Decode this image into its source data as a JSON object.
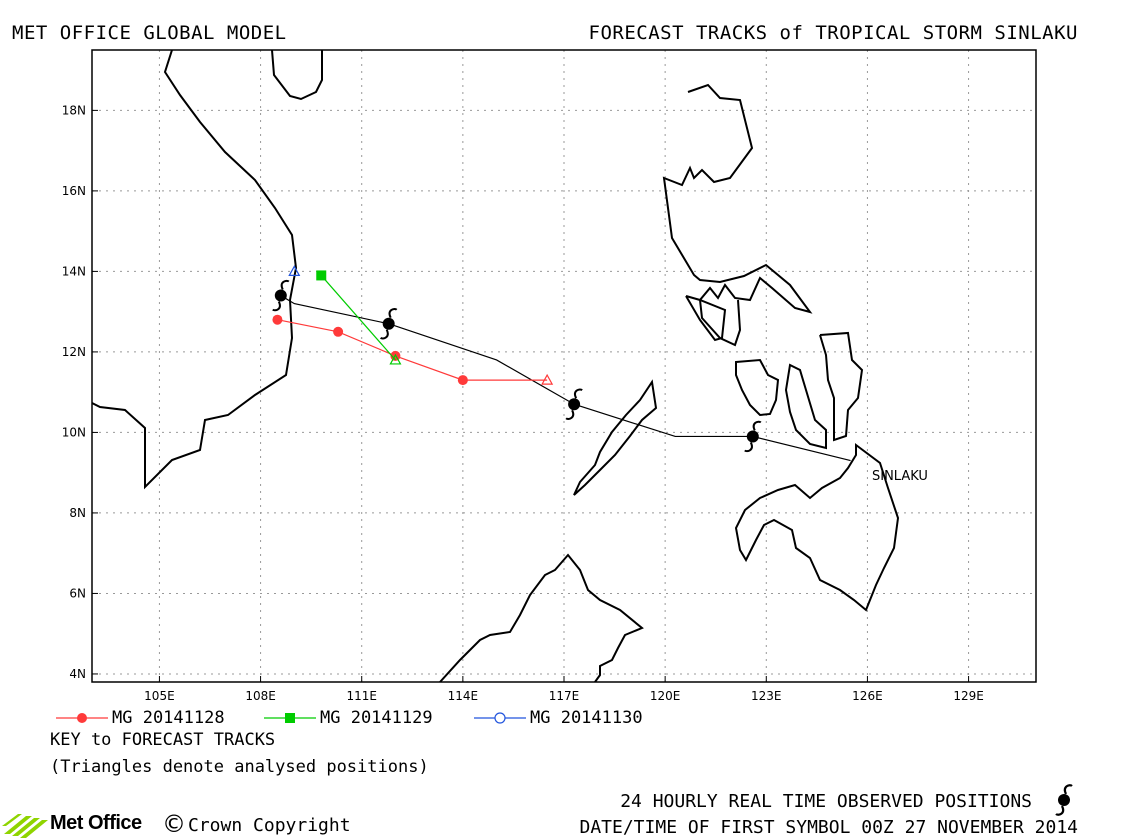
{
  "header": {
    "left": "MET OFFICE GLOBAL MODEL",
    "right": "FORECAST TRACKS of TROPICAL STORM SINLAKU"
  },
  "chart_data": {
    "type": "map",
    "lon_range": [
      103,
      131
    ],
    "lat_range": [
      3.8,
      19.5
    ],
    "x_ticks": [
      "105E",
      "108E",
      "111E",
      "114E",
      "117E",
      "120E",
      "123E",
      "126E",
      "129E"
    ],
    "x_tick_values": [
      105,
      108,
      111,
      114,
      117,
      120,
      123,
      126,
      129
    ],
    "y_ticks": [
      "4N",
      "6N",
      "8N",
      "10N",
      "12N",
      "14N",
      "16N",
      "18N"
    ],
    "y_tick_values": [
      4,
      6,
      8,
      10,
      12,
      14,
      16,
      18
    ],
    "grid": true,
    "storm_label": "SINLAKU",
    "observed_track": [
      [
        125.5,
        9.3
      ],
      [
        122.6,
        9.9
      ],
      [
        120.3,
        9.9
      ],
      [
        117.3,
        10.7
      ],
      [
        115.0,
        11.8
      ],
      [
        111.8,
        12.7
      ],
      [
        109.0,
        13.2
      ],
      [
        108.6,
        13.4
      ]
    ],
    "observed_positions": [
      [
        122.6,
        9.9
      ],
      [
        117.3,
        10.7
      ],
      [
        111.8,
        12.7
      ],
      [
        108.6,
        13.4
      ]
    ],
    "forecast_tracks": [
      {
        "name": "MG 20141128",
        "color": "#ff3a3a",
        "marker": "circle-filled",
        "points": [
          [
            116.5,
            11.3
          ],
          [
            114.0,
            11.3
          ],
          [
            112.0,
            11.9
          ],
          [
            110.3,
            12.5
          ],
          [
            108.5,
            12.8
          ]
        ],
        "analysed": [
          116.5,
          11.3
        ]
      },
      {
        "name": "MG 20141129",
        "color": "#00cc00",
        "marker": "square-filled",
        "points": [
          [
            112.0,
            11.8
          ],
          [
            109.8,
            13.9
          ]
        ],
        "analysed": [
          112.0,
          11.8
        ]
      },
      {
        "name": "MG 20141130",
        "color": "#2255dd",
        "marker": "circle-open",
        "points": [],
        "analysed": [
          109.0,
          14.0
        ]
      }
    ]
  },
  "legend": {
    "items": [
      {
        "label": "MG 20141128",
        "color": "#ff3a3a",
        "marker": "circle-filled"
      },
      {
        "label": "MG 20141129",
        "color": "#00cc00",
        "marker": "square-filled"
      },
      {
        "label": "MG 20141130",
        "color": "#2255dd",
        "marker": "circle-open"
      }
    ]
  },
  "notes": {
    "key": "KEY to FORECAST TRACKS",
    "triangles": "(Triangles denote analysed positions)"
  },
  "footer": {
    "observed": "24 HOURLY REAL TIME OBSERVED POSITIONS",
    "datetime": "DATE/TIME OF FIRST SYMBOL 00Z 27 NOVEMBER 2014",
    "brand": "Met Office",
    "copyright_symbol": "©",
    "copyright": "Crown Copyright"
  }
}
